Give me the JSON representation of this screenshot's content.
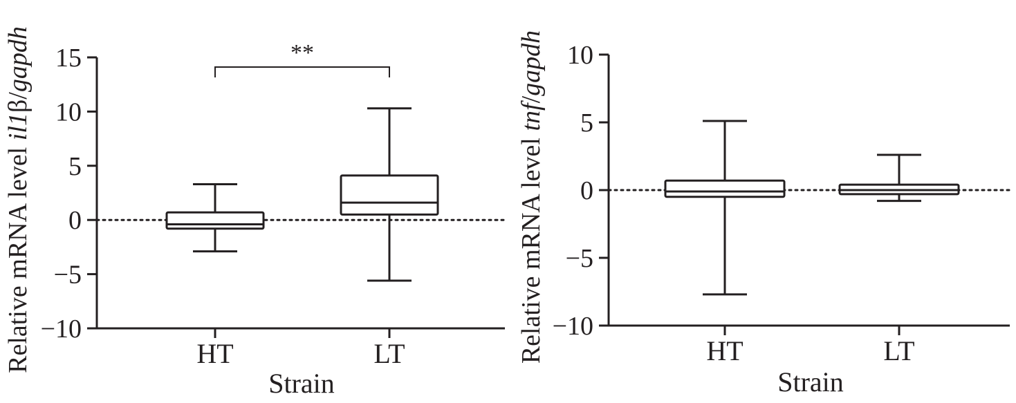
{
  "chart_data": [
    {
      "type": "box",
      "panel": "left",
      "ylabel": {
        "prefix": "Relative mRNA level ",
        "gene": "il1",
        "beta": "β",
        "suffix": "/",
        "ref": "gapdh"
      },
      "xlabel": "Strain",
      "categories": [
        "HT",
        "LT"
      ],
      "ylim": [
        -10,
        15
      ],
      "yticks": [
        15,
        10,
        5,
        0,
        -5,
        -10
      ],
      "ytick_labels": [
        "15",
        "10",
        "5",
        "0",
        "−5",
        "−10"
      ],
      "reference_line": 0,
      "boxes": [
        {
          "category": "HT",
          "min": -2.9,
          "q1": -0.8,
          "median": -0.4,
          "q3": 0.7,
          "max": 3.3
        },
        {
          "category": "LT",
          "min": -5.6,
          "q1": 0.5,
          "median": 1.6,
          "q3": 4.1,
          "max": 10.3
        }
      ],
      "significance": {
        "between": [
          "HT",
          "LT"
        ],
        "label": "**"
      }
    },
    {
      "type": "box",
      "panel": "right",
      "ylabel": {
        "prefix": "Relative mRNA level ",
        "gene": "tnf",
        "beta": "",
        "suffix": "/",
        "ref": "gapdh"
      },
      "xlabel": "Strain",
      "categories": [
        "HT",
        "LT"
      ],
      "ylim": [
        -10,
        10
      ],
      "yticks": [
        10,
        5,
        0,
        -5,
        -10
      ],
      "ytick_labels": [
        "10",
        "5",
        "0",
        "−5",
        "−10"
      ],
      "reference_line": 0,
      "boxes": [
        {
          "category": "HT",
          "min": -7.7,
          "q1": -0.5,
          "median": -0.1,
          "q3": 0.7,
          "max": 5.1
        },
        {
          "category": "LT",
          "min": -0.8,
          "q1": -0.3,
          "median": 0.0,
          "q3": 0.4,
          "max": 2.6
        }
      ],
      "significance": null
    }
  ]
}
